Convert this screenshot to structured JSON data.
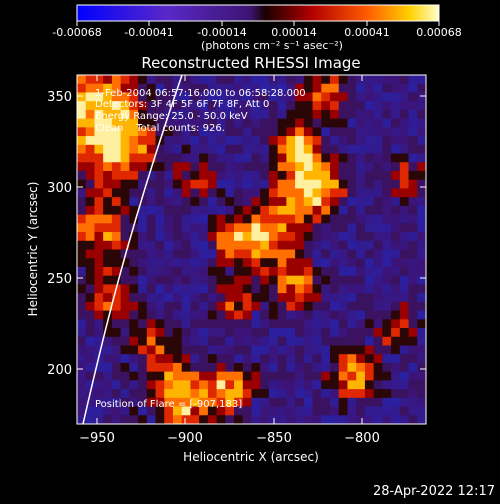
{
  "colorbar": {
    "ticks": [
      "-0.00068",
      "-0.00041",
      "-0.00014",
      "0.00014",
      "0.00041",
      "0.00068"
    ],
    "units": "(photons cm⁻² s⁻¹ asec⁻²)"
  },
  "plot": {
    "title": "Reconstructed RHESSI Image",
    "x_ticks": [
      "−950",
      "−900",
      "−850",
      "−800"
    ],
    "y_ticks": [
      "350",
      "300",
      "250",
      "200"
    ],
    "xlabel": "Heliocentric X (arcsec)",
    "ylabel": "Heliocentric Y (arcsec)"
  },
  "annotations": {
    "time_range": "1-Feb-2004 06:57:16.000 to 06:58:28.000",
    "detectors": "Detectors: 3F 4F 5F 6F 7F 8F, Att 0",
    "energy": "Energy Range: 25.0 - 50.0 keV",
    "method_counts": "Clean    Total counts: 926.",
    "flare_position": "Position of Flare = [-907,183]"
  },
  "footer": {
    "timestamp": "28-Apr-2022 12:17"
  },
  "colors": {
    "background": "#000000",
    "text": "#ffffff",
    "limb_line": "#ffffff"
  }
}
